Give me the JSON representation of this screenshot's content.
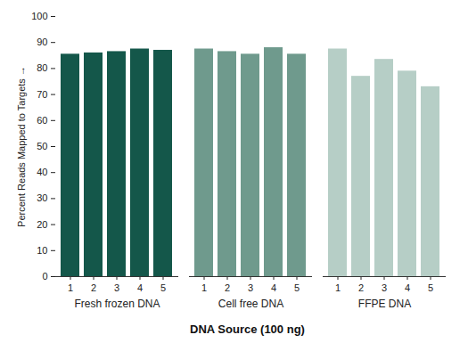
{
  "chart_data": {
    "type": "bar",
    "x_label": "DNA Source (100 ng)",
    "y_label": "Percent Reads Mapped to Targets",
    "categories": [
      "1",
      "2",
      "3",
      "4",
      "5"
    ],
    "series": [
      {
        "name": "Fresh frozen DNA",
        "color": "#14574a",
        "values": [
          85.5,
          86,
          86.5,
          87.5,
          87
        ]
      },
      {
        "name": "Cell free DNA",
        "color": "#6f9a8d",
        "values": [
          87.5,
          86.5,
          85.5,
          88,
          85.5
        ]
      },
      {
        "name": "FFPE DNA",
        "color": "#b6cec6",
        "values": [
          87.5,
          77,
          83.5,
          79,
          73
        ]
      }
    ],
    "ylim": [
      0,
      100
    ],
    "yticks": [
      0,
      10,
      20,
      30,
      40,
      50,
      60,
      70,
      80,
      90,
      100
    ],
    "grid": false
  }
}
